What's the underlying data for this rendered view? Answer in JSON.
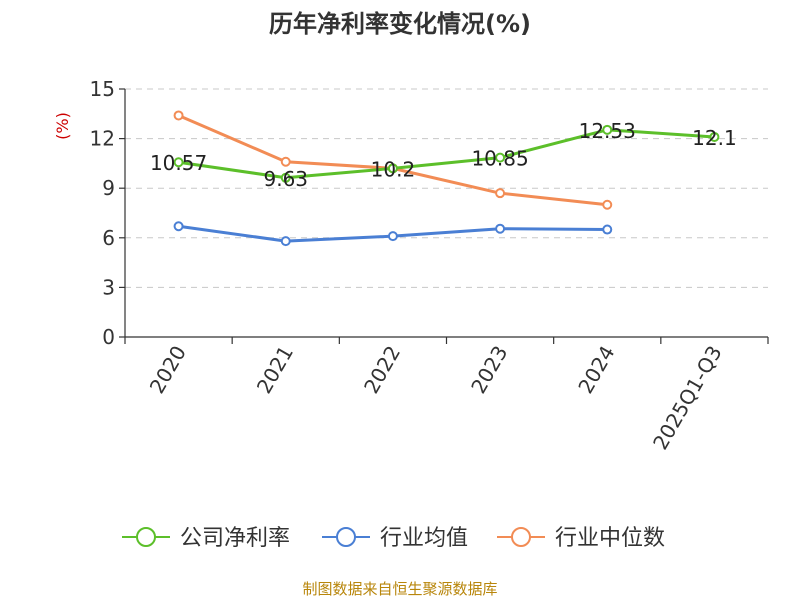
{
  "chart_data": {
    "type": "line",
    "title": "历年净利率变化情况(%)",
    "ylabel": "(%)",
    "ylim": [
      0,
      15
    ],
    "yticks": [
      0,
      3,
      6,
      9,
      12,
      15
    ],
    "categories": [
      "2020",
      "2021",
      "2022",
      "2023",
      "2024",
      "2025Q1-Q3"
    ],
    "grid": true,
    "legend_position": "bottom",
    "series": [
      {
        "name": "公司净利率",
        "color": "#5cbf2a",
        "values": [
          10.57,
          9.63,
          10.2,
          10.85,
          12.53,
          12.1
        ],
        "labels": [
          "10.57",
          "9.63",
          "10.2",
          "10.85",
          "12.53",
          "12.1"
        ]
      },
      {
        "name": "行业均值",
        "color": "#4a7fd4",
        "values": [
          6.7,
          5.8,
          6.1,
          6.55,
          6.5,
          null
        ]
      },
      {
        "name": "行业中位数",
        "color": "#f28c55",
        "values": [
          13.4,
          10.6,
          10.2,
          8.7,
          8.0,
          null
        ]
      }
    ]
  },
  "source": "制图数据来自恒生聚源数据库",
  "source_color": "#b8860b"
}
